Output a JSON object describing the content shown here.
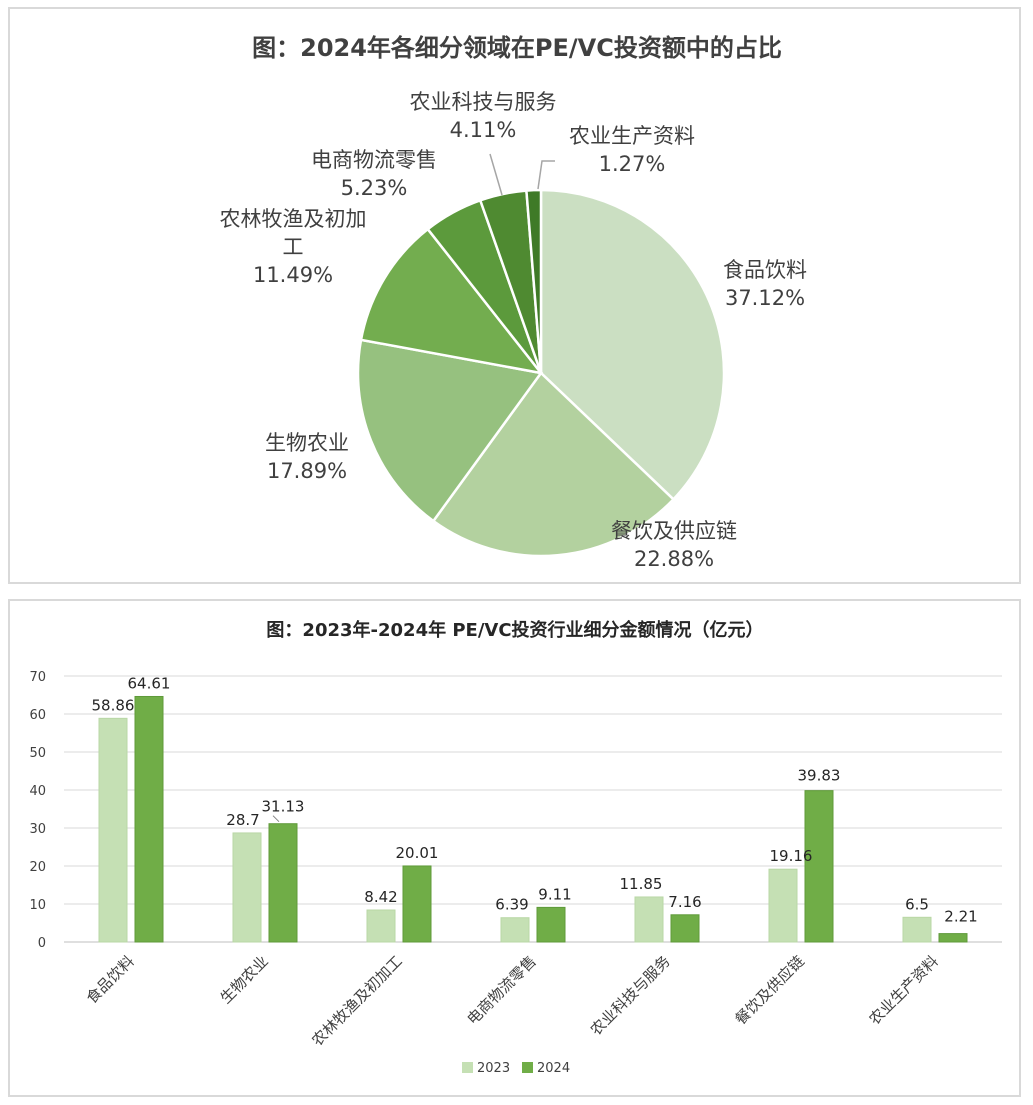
{
  "chart_data": [
    {
      "type": "pie",
      "title": "图：2024年各细分领域在PE/VC投资额中的占比",
      "slices": [
        {
          "label": "食品饮料",
          "value": 37.12,
          "value_label": "37.12%",
          "color": "#cbdfc2"
        },
        {
          "label": "餐饮及供应链",
          "value": 22.88,
          "value_label": "22.88%",
          "color": "#b3d19f"
        },
        {
          "label": "生物农业",
          "value": 17.89,
          "value_label": "17.89%",
          "color": "#96c17f"
        },
        {
          "label": "农林牧渔及初加工",
          "value": 11.49,
          "value_label": "11.49%",
          "color": "#73ad4f"
        },
        {
          "label": "电商物流零售",
          "value": 5.23,
          "value_label": "5.23%",
          "color": "#5c9a3c"
        },
        {
          "label": "农业科技与服务",
          "value": 4.11,
          "value_label": "4.11%",
          "color": "#4f8a31"
        },
        {
          "label": "农业生产资料",
          "value": 1.27,
          "value_label": "1.27%",
          "color": "#3f7a27"
        }
      ]
    },
    {
      "type": "bar",
      "title": "图：2023年-2024年 PE/VC投资行业细分金额情况（亿元）",
      "categories": [
        "食品饮料",
        "生物农业",
        "农林牧渔及初加工",
        "电商物流零售",
        "农业科技与服务",
        "餐饮及供应链",
        "农业生产资料"
      ],
      "series": [
        {
          "name": "2023",
          "color": "#c5e0b4",
          "values": [
            58.86,
            28.7,
            8.42,
            6.39,
            11.85,
            19.16,
            6.5
          ],
          "labels": [
            "58.86",
            "28.7",
            "8.42",
            "6.39",
            "11.85",
            "19.16",
            "6.5"
          ]
        },
        {
          "name": "2024",
          "color": "#70ad47",
          "values": [
            64.61,
            31.13,
            20.01,
            9.11,
            7.16,
            39.83,
            2.21
          ],
          "labels": [
            "64.61",
            "31.13",
            "20.01",
            "9.11",
            "7.16",
            "39.83",
            "2.21"
          ]
        }
      ],
      "ylim": [
        0,
        70
      ],
      "yticks": [
        0,
        10,
        20,
        30,
        40,
        50,
        60,
        70
      ],
      "grid": true,
      "legend": "bottom"
    }
  ]
}
